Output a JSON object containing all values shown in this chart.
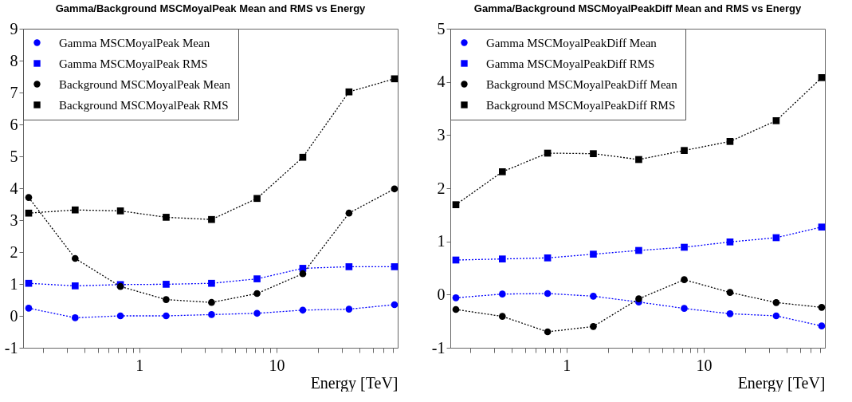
{
  "chart_data": [
    {
      "type": "line",
      "title": "Gamma/Background MSCMoyalPeak Mean and RMS vs Energy",
      "xlabel": "Energy [TeV]",
      "log": "x",
      "legend": "top left",
      "line_style": "dotted",
      "x": [
        0.157,
        0.342,
        0.73,
        1.57,
        3.36,
        7.2,
        15.5,
        33.6,
        72
      ],
      "xlim": [
        0.143,
        76
      ],
      "xticks": [
        {
          "value": 0.2,
          "label": null
        },
        {
          "value": 0.3,
          "label": null
        },
        {
          "value": 0.4,
          "label": null
        },
        {
          "value": 0.5,
          "label": null
        },
        {
          "value": 0.6,
          "label": null
        },
        {
          "value": 0.7,
          "label": null
        },
        {
          "value": 0.8,
          "label": null
        },
        {
          "value": 0.9,
          "label": null
        },
        {
          "value": 1,
          "label": "1"
        },
        {
          "value": 2,
          "label": null
        },
        {
          "value": 3,
          "label": null
        },
        {
          "value": 4,
          "label": null
        },
        {
          "value": 5,
          "label": null
        },
        {
          "value": 6,
          "label": null
        },
        {
          "value": 7,
          "label": null
        },
        {
          "value": 8,
          "label": null
        },
        {
          "value": 9,
          "label": null
        },
        {
          "value": 10,
          "label": "10"
        },
        {
          "value": 20,
          "label": null
        },
        {
          "value": 30,
          "label": null
        },
        {
          "value": 40,
          "label": null
        },
        {
          "value": 50,
          "label": null
        },
        {
          "value": 60,
          "label": null
        },
        {
          "value": 70,
          "label": null
        }
      ],
      "ylim": [
        -1,
        9
      ],
      "yticks": [
        -1,
        0,
        1,
        2,
        3,
        4,
        5,
        6,
        7,
        8,
        9
      ],
      "series": [
        {
          "name": "Gamma MSCMoyalPeak Mean",
          "color": "#0000ff",
          "marker": "circle",
          "values": [
            0.24,
            -0.06,
            0,
            0,
            0.04,
            0.08,
            0.18,
            0.21,
            0.35
          ]
        },
        {
          "name": "Gamma MSCMoyalPeak RMS",
          "color": "#0000ff",
          "marker": "square",
          "values": [
            1.02,
            0.94,
            0.98,
            0.99,
            1.02,
            1.16,
            1.49,
            1.54,
            1.54
          ]
        },
        {
          "name": "Background MSCMoyalPeak Mean",
          "color": "#000000",
          "marker": "circle",
          "values": [
            3.71,
            1.8,
            0.92,
            0.51,
            0.42,
            0.7,
            1.32,
            3.22,
            3.98
          ]
        },
        {
          "name": "Background MSCMoyalPeak RMS",
          "color": "#000000",
          "marker": "square",
          "values": [
            3.22,
            3.32,
            3.29,
            3.09,
            3.02,
            3.68,
            4.97,
            7.02,
            7.43
          ]
        }
      ]
    },
    {
      "type": "line",
      "title": "Gamma/Background MSCMoyalPeakDiff Mean and RMS vs Energy",
      "xlabel": "Energy [TeV]",
      "log": "x",
      "legend": "top left",
      "line_style": "dotted",
      "x": [
        0.157,
        0.342,
        0.73,
        1.57,
        3.36,
        7.2,
        15.5,
        33.6,
        72
      ],
      "xlim": [
        0.143,
        76
      ],
      "xticks": [
        {
          "value": 0.2,
          "label": null
        },
        {
          "value": 0.3,
          "label": null
        },
        {
          "value": 0.4,
          "label": null
        },
        {
          "value": 0.5,
          "label": null
        },
        {
          "value": 0.6,
          "label": null
        },
        {
          "value": 0.7,
          "label": null
        },
        {
          "value": 0.8,
          "label": null
        },
        {
          "value": 0.9,
          "label": null
        },
        {
          "value": 1,
          "label": "1"
        },
        {
          "value": 2,
          "label": null
        },
        {
          "value": 3,
          "label": null
        },
        {
          "value": 4,
          "label": null
        },
        {
          "value": 5,
          "label": null
        },
        {
          "value": 6,
          "label": null
        },
        {
          "value": 7,
          "label": null
        },
        {
          "value": 8,
          "label": null
        },
        {
          "value": 9,
          "label": null
        },
        {
          "value": 10,
          "label": "10"
        },
        {
          "value": 20,
          "label": null
        },
        {
          "value": 30,
          "label": null
        },
        {
          "value": 40,
          "label": null
        },
        {
          "value": 50,
          "label": null
        },
        {
          "value": 60,
          "label": null
        },
        {
          "value": 70,
          "label": null
        }
      ],
      "ylim": [
        -1,
        5
      ],
      "yticks": [
        -1,
        0,
        1,
        2,
        3,
        4,
        5
      ],
      "series": [
        {
          "name": "Gamma MSCMoyalPeakDiff Mean",
          "color": "#0000ff",
          "marker": "circle",
          "values": [
            -0.06,
            0.01,
            0.02,
            -0.03,
            -0.14,
            -0.26,
            -0.36,
            -0.4,
            -0.59
          ]
        },
        {
          "name": "Gamma MSCMoyalPeakDiff RMS",
          "color": "#0000ff",
          "marker": "square",
          "values": [
            0.65,
            0.67,
            0.69,
            0.76,
            0.83,
            0.89,
            0.99,
            1.07,
            1.27
          ]
        },
        {
          "name": "Background MSCMoyalPeakDiff Mean",
          "color": "#000000",
          "marker": "circle",
          "values": [
            -0.28,
            -0.41,
            -0.7,
            -0.6,
            -0.08,
            0.28,
            0.04,
            -0.15,
            -0.24
          ]
        },
        {
          "name": "Background MSCMoyalPeakDiff RMS",
          "color": "#000000",
          "marker": "square",
          "values": [
            1.69,
            2.31,
            2.66,
            2.65,
            2.54,
            2.71,
            2.88,
            3.27,
            4.08
          ]
        }
      ]
    }
  ]
}
